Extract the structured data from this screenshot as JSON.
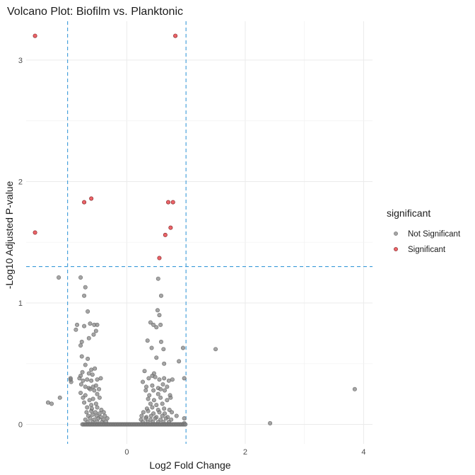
{
  "chart_data": {
    "type": "scatter",
    "title": "Volcano Plot: Biofilm vs. Planktonic",
    "xlabel": "Log2 Fold Change",
    "ylabel": "-Log10 Adjusted P-value",
    "xlim": [
      -1.7,
      4.15
    ],
    "ylim": [
      -0.16,
      3.32
    ],
    "x_ticks": [
      0,
      2,
      4
    ],
    "y_ticks": [
      0,
      1,
      2,
      3
    ],
    "grid": true,
    "legend_position": "right",
    "thresholds": {
      "log2fc": [
        -1,
        1
      ],
      "neg_log10_padj": 1.3
    },
    "legend": {
      "title": "significant",
      "entries": [
        {
          "label": "Not Significant",
          "color": "#7f7f7f"
        },
        {
          "label": "Significant",
          "color": "#e8484d"
        }
      ]
    },
    "series": [
      {
        "name": "Significant",
        "color": "#e8484d",
        "points": [
          [
            -1.55,
            3.2
          ],
          [
            0.82,
            3.2
          ],
          [
            -0.6,
            1.86
          ],
          [
            -0.72,
            1.83
          ],
          [
            0.7,
            1.83
          ],
          [
            0.78,
            1.83
          ],
          [
            0.74,
            1.62
          ],
          [
            0.65,
            1.56
          ],
          [
            -1.55,
            1.58
          ],
          [
            0.55,
            1.37
          ]
        ]
      },
      {
        "name": "Not Significant",
        "color": "#7f7f7f",
        "points": [
          [
            -1.15,
            1.21
          ],
          [
            -0.78,
            1.21
          ],
          [
            -0.7,
            1.13
          ],
          [
            -0.72,
            1.06
          ],
          [
            0.53,
            1.2
          ],
          [
            0.58,
            1.06
          ],
          [
            0.52,
            0.94
          ],
          [
            -0.66,
            0.93
          ],
          [
            0.55,
            0.9
          ],
          [
            -0.84,
            0.82
          ],
          [
            -0.62,
            0.83
          ],
          [
            -0.72,
            0.81
          ],
          [
            -0.5,
            0.82
          ],
          [
            -0.55,
            0.82
          ],
          [
            0.4,
            0.84
          ],
          [
            0.45,
            0.82
          ],
          [
            0.5,
            0.8
          ],
          [
            0.57,
            0.82
          ],
          [
            -0.86,
            0.78
          ],
          [
            -0.52,
            0.77
          ],
          [
            -0.56,
            0.74
          ],
          [
            0.35,
            0.69
          ],
          [
            0.58,
            0.68
          ],
          [
            -0.76,
            0.68
          ],
          [
            -0.64,
            0.71
          ],
          [
            -0.78,
            0.65
          ],
          [
            0.42,
            0.63
          ],
          [
            0.62,
            0.62
          ],
          [
            0.95,
            0.63
          ],
          [
            1.5,
            0.62
          ],
          [
            -0.76,
            0.56
          ],
          [
            -0.66,
            0.54
          ],
          [
            0.5,
            0.55
          ],
          [
            0.63,
            0.5
          ],
          [
            0.88,
            0.52
          ],
          [
            -0.7,
            0.49
          ],
          [
            -0.6,
            0.45
          ],
          [
            -0.54,
            0.46
          ],
          [
            -0.75,
            0.43
          ],
          [
            -0.64,
            0.42
          ],
          [
            -0.78,
            0.4
          ],
          [
            -0.58,
            0.41
          ],
          [
            0.3,
            0.44
          ],
          [
            0.46,
            0.42
          ],
          [
            -0.95,
            0.38
          ],
          [
            -0.8,
            0.38
          ],
          [
            -0.74,
            0.36
          ],
          [
            -0.67,
            0.37
          ],
          [
            -0.6,
            0.36
          ],
          [
            -0.5,
            0.37
          ],
          [
            -0.44,
            0.38
          ],
          [
            0.27,
            0.35
          ],
          [
            0.37,
            0.38
          ],
          [
            0.43,
            0.4
          ],
          [
            0.48,
            0.39
          ],
          [
            0.55,
            0.37
          ],
          [
            0.63,
            0.38
          ],
          [
            0.71,
            0.36
          ],
          [
            0.77,
            0.37
          ],
          [
            -0.94,
            0.35
          ],
          [
            -0.77,
            0.33
          ],
          [
            -0.7,
            0.31
          ],
          [
            -0.64,
            0.3
          ],
          [
            -0.57,
            0.31
          ],
          [
            -0.52,
            0.32
          ],
          [
            0.33,
            0.31
          ],
          [
            0.43,
            0.32
          ],
          [
            0.53,
            0.3
          ],
          [
            0.61,
            0.33
          ],
          [
            0.68,
            0.31
          ],
          [
            0.97,
            0.38
          ],
          [
            -0.62,
            0.29
          ],
          [
            -0.55,
            0.28
          ],
          [
            -0.47,
            0.29
          ],
          [
            0.32,
            0.28
          ],
          [
            0.45,
            0.28
          ],
          [
            0.57,
            0.29
          ],
          [
            0.64,
            0.28
          ],
          [
            -0.78,
            0.26
          ],
          [
            -0.7,
            0.24
          ],
          [
            -0.5,
            0.25
          ],
          [
            0.38,
            0.24
          ],
          [
            0.53,
            0.25
          ],
          [
            0.73,
            0.24
          ],
          [
            -0.74,
            0.22
          ],
          [
            -0.63,
            0.2
          ],
          [
            -0.57,
            0.21
          ],
          [
            -0.46,
            0.22
          ],
          [
            0.36,
            0.21
          ],
          [
            0.46,
            0.2
          ],
          [
            0.57,
            0.22
          ],
          [
            0.68,
            0.2
          ],
          [
            0.74,
            0.22
          ],
          [
            -0.72,
            0.18
          ],
          [
            -0.6,
            0.16
          ],
          [
            -0.52,
            0.17
          ],
          [
            0.4,
            0.17
          ],
          [
            0.5,
            0.16
          ],
          [
            0.6,
            0.17
          ],
          [
            -0.67,
            0.14
          ],
          [
            -0.59,
            0.13
          ],
          [
            -0.5,
            0.14
          ],
          [
            -0.43,
            0.12
          ],
          [
            0.34,
            0.13
          ],
          [
            0.43,
            0.14
          ],
          [
            0.53,
            0.12
          ],
          [
            0.63,
            0.13
          ],
          [
            0.72,
            0.12
          ],
          [
            -0.68,
            0.1
          ],
          [
            -0.6,
            0.11
          ],
          [
            -0.53,
            0.1
          ],
          [
            -0.46,
            0.09
          ],
          [
            -0.39,
            0.1
          ],
          [
            0.28,
            0.1
          ],
          [
            0.36,
            0.11
          ],
          [
            0.45,
            0.09
          ],
          [
            0.55,
            0.1
          ],
          [
            0.64,
            0.09
          ],
          [
            0.76,
            0.1
          ],
          [
            -0.65,
            0.07
          ],
          [
            -0.58,
            0.08
          ],
          [
            -0.51,
            0.07
          ],
          [
            -0.44,
            0.06
          ],
          [
            -0.37,
            0.07
          ],
          [
            0.25,
            0.07
          ],
          [
            0.33,
            0.06
          ],
          [
            0.41,
            0.07
          ],
          [
            0.5,
            0.06
          ],
          [
            0.6,
            0.07
          ],
          [
            0.69,
            0.06
          ],
          [
            0.84,
            0.07
          ],
          [
            -0.7,
            0.04
          ],
          [
            -0.62,
            0.05
          ],
          [
            -0.55,
            0.04
          ],
          [
            -0.48,
            0.05
          ],
          [
            -0.4,
            0.04
          ],
          [
            -0.33,
            0.05
          ],
          [
            0.24,
            0.04
          ],
          [
            0.32,
            0.05
          ],
          [
            0.4,
            0.04
          ],
          [
            0.48,
            0.05
          ],
          [
            0.57,
            0.04
          ],
          [
            0.66,
            0.05
          ],
          [
            0.75,
            0.04
          ],
          [
            -0.66,
            0.02
          ],
          [
            -0.58,
            0.02
          ],
          [
            -0.5,
            0.02
          ],
          [
            -0.42,
            0.02
          ],
          [
            -0.35,
            0.02
          ],
          [
            0.27,
            0.02
          ],
          [
            0.35,
            0.02
          ],
          [
            0.44,
            0.02
          ],
          [
            0.53,
            0.02
          ],
          [
            0.62,
            0.02
          ],
          [
            0.71,
            0.02
          ],
          [
            -1.33,
            0.18
          ],
          [
            -1.27,
            0.17
          ],
          [
            -1.13,
            0.22
          ],
          [
            0.97,
            0.05
          ],
          [
            0.97,
            0.01
          ],
          [
            -0.95,
            0.37
          ],
          [
            2.42,
            0.01
          ],
          [
            3.85,
            0.29
          ]
        ],
        "baseline_band": {
          "y": 0.0,
          "x_range": [
            -0.75,
            1.0
          ],
          "step": 0.02
        }
      }
    ]
  }
}
